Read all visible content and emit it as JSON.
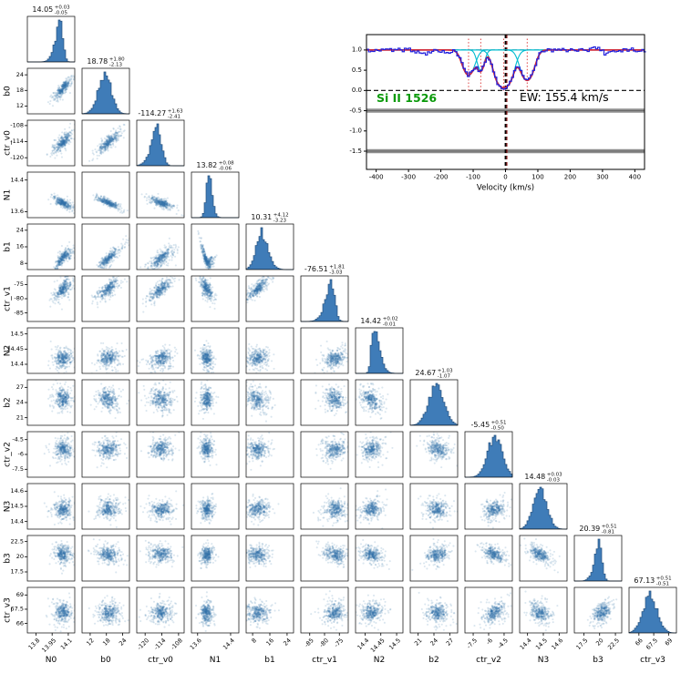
{
  "chart_data": [
    {
      "type": "corner",
      "description": "MCMC corner plot of Voigt-profile fit parameters: lower-triangle 2D posterior density panels and diagonal 1D marginal histograms",
      "hist_fill": "#3f7cb8",
      "hist_edge": "#26527f",
      "point_color": "#3172a9",
      "parameters": [
        {
          "name": "N0",
          "value": "14.05",
          "plus": "0.03",
          "minus": "0.05",
          "range": [
            13.72,
            14.16
          ],
          "ticks": [
            "13.8",
            "13.95",
            "14.1"
          ]
        },
        {
          "name": "b0",
          "value": "18.78",
          "plus": "1.80",
          "minus": "2.13",
          "range": [
            9,
            26.5
          ],
          "ticks": [
            "12",
            "18",
            "24"
          ]
        },
        {
          "name": "ctr_v0",
          "value": "-114.27",
          "plus": "1.63",
          "minus": "2.41",
          "range": [
            -123,
            -106
          ],
          "ticks": [
            "-120",
            "-114",
            "-108"
          ]
        },
        {
          "name": "N1",
          "value": "13.82",
          "plus": "0.08",
          "minus": "0.06",
          "range": [
            13.45,
            14.6
          ],
          "ticks": [
            "13.6",
            "14.4"
          ]
        },
        {
          "name": "b1",
          "value": "10.31",
          "plus": "4.12",
          "minus": "3.23",
          "range": [
            5,
            27
          ],
          "ticks": [
            "8",
            "16",
            "24"
          ]
        },
        {
          "name": "ctr_v1",
          "value": "-76.51",
          "plus": "1.81",
          "minus": "3.03",
          "range": [
            -88,
            -72
          ],
          "ticks": [
            "-85",
            "-80",
            "-75"
          ]
        },
        {
          "name": "N2",
          "value": "14.42",
          "plus": "0.02",
          "minus": "0.01",
          "range": [
            14.37,
            14.52
          ],
          "ticks": [
            "14.4",
            "14.45",
            "14.5"
          ]
        },
        {
          "name": "b2",
          "value": "24.67",
          "plus": "1.03",
          "minus": "1.07",
          "range": [
            19.5,
            28.5
          ],
          "ticks": [
            "21",
            "24",
            "27"
          ]
        },
        {
          "name": "ctr_v2",
          "value": "-5.45",
          "plus": "0.51",
          "minus": "0.50",
          "range": [
            -8.3,
            -3.7
          ],
          "ticks": [
            "-7.5",
            "-6",
            "-4.5"
          ]
        },
        {
          "name": "N3",
          "value": "14.48",
          "plus": "0.03",
          "minus": "0.03",
          "range": [
            14.35,
            14.65
          ],
          "ticks": [
            "14.4",
            "14.5",
            "14.6"
          ]
        },
        {
          "name": "b3",
          "value": "20.39",
          "plus": "0.51",
          "minus": "0.81",
          "range": [
            16,
            23.5
          ],
          "ticks": [
            "17.5",
            "20",
            "22.5"
          ]
        },
        {
          "name": "ctr_v3",
          "value": "67.13",
          "plus": "0.51",
          "minus": "0.51",
          "range": [
            65,
            69.8
          ],
          "ticks": [
            "66",
            "67.5",
            "69"
          ]
        }
      ],
      "corr": [
        [],
        [
          0.85
        ],
        [
          0.75,
          0.8
        ],
        [
          -0.75,
          -0.8,
          -0.65
        ],
        [
          0.85,
          0.85,
          0.7,
          -0.9
        ],
        [
          0.65,
          0.75,
          0.75,
          -0.6,
          0.8
        ],
        [
          0.15,
          0.2,
          0.2,
          -0.1,
          0.2,
          0.25
        ],
        [
          -0.1,
          -0.15,
          -0.1,
          0.1,
          -0.2,
          -0.25,
          -0.35
        ],
        [
          0.05,
          0.1,
          0.1,
          0,
          0.1,
          0.15,
          0.2,
          -0.3
        ],
        [
          0,
          0.05,
          0.05,
          0,
          0.05,
          0.05,
          0.1,
          -0.1,
          0.2
        ],
        [
          -0.05,
          -0.1,
          -0.1,
          0.05,
          -0.1,
          -0.15,
          -0.2,
          0.15,
          -0.55,
          -0.5
        ],
        [
          0.05,
          0.05,
          0.05,
          0,
          0.05,
          0.1,
          0.1,
          -0.15,
          0.3,
          -0.2,
          0.35
        ]
      ],
      "curves": {
        "4_3": 0.5,
        "4_0": -0.3
      }
    },
    {
      "type": "spectrum-fit",
      "line_label": "Si II 1526",
      "ew_label": "EW: 155.4 km/s",
      "xlabel": "Velocity (km/s)",
      "x_ticks": [
        "-400",
        "-300",
        "-200",
        "-100",
        "0",
        "100",
        "200",
        "300",
        "400"
      ],
      "y_ticks": [
        "1.0",
        "0.5",
        "0.0",
        "-0.5",
        "-1.0",
        "-1.5"
      ],
      "xlim": [
        -430,
        430
      ],
      "ylim": [
        -1.95,
        1.38
      ],
      "components": [
        {
          "velocity": -114.27,
          "sigma": 16,
          "depth": 0.62
        },
        {
          "velocity": -76.51,
          "sigma": 10,
          "depth": 0.5
        },
        {
          "velocity": -5.45,
          "sigma": 20,
          "depth": 0.93
        },
        {
          "velocity": 67.13,
          "sigma": 17,
          "depth": 0.75
        }
      ],
      "colors": {
        "data": "#2020dd",
        "model": "#d02c3c",
        "component": "#00bcd0",
        "marker": "#dd4444",
        "band": "#8f8f8f",
        "zero_line": "#8b0000",
        "line_id": "#0a9a0a"
      }
    }
  ]
}
